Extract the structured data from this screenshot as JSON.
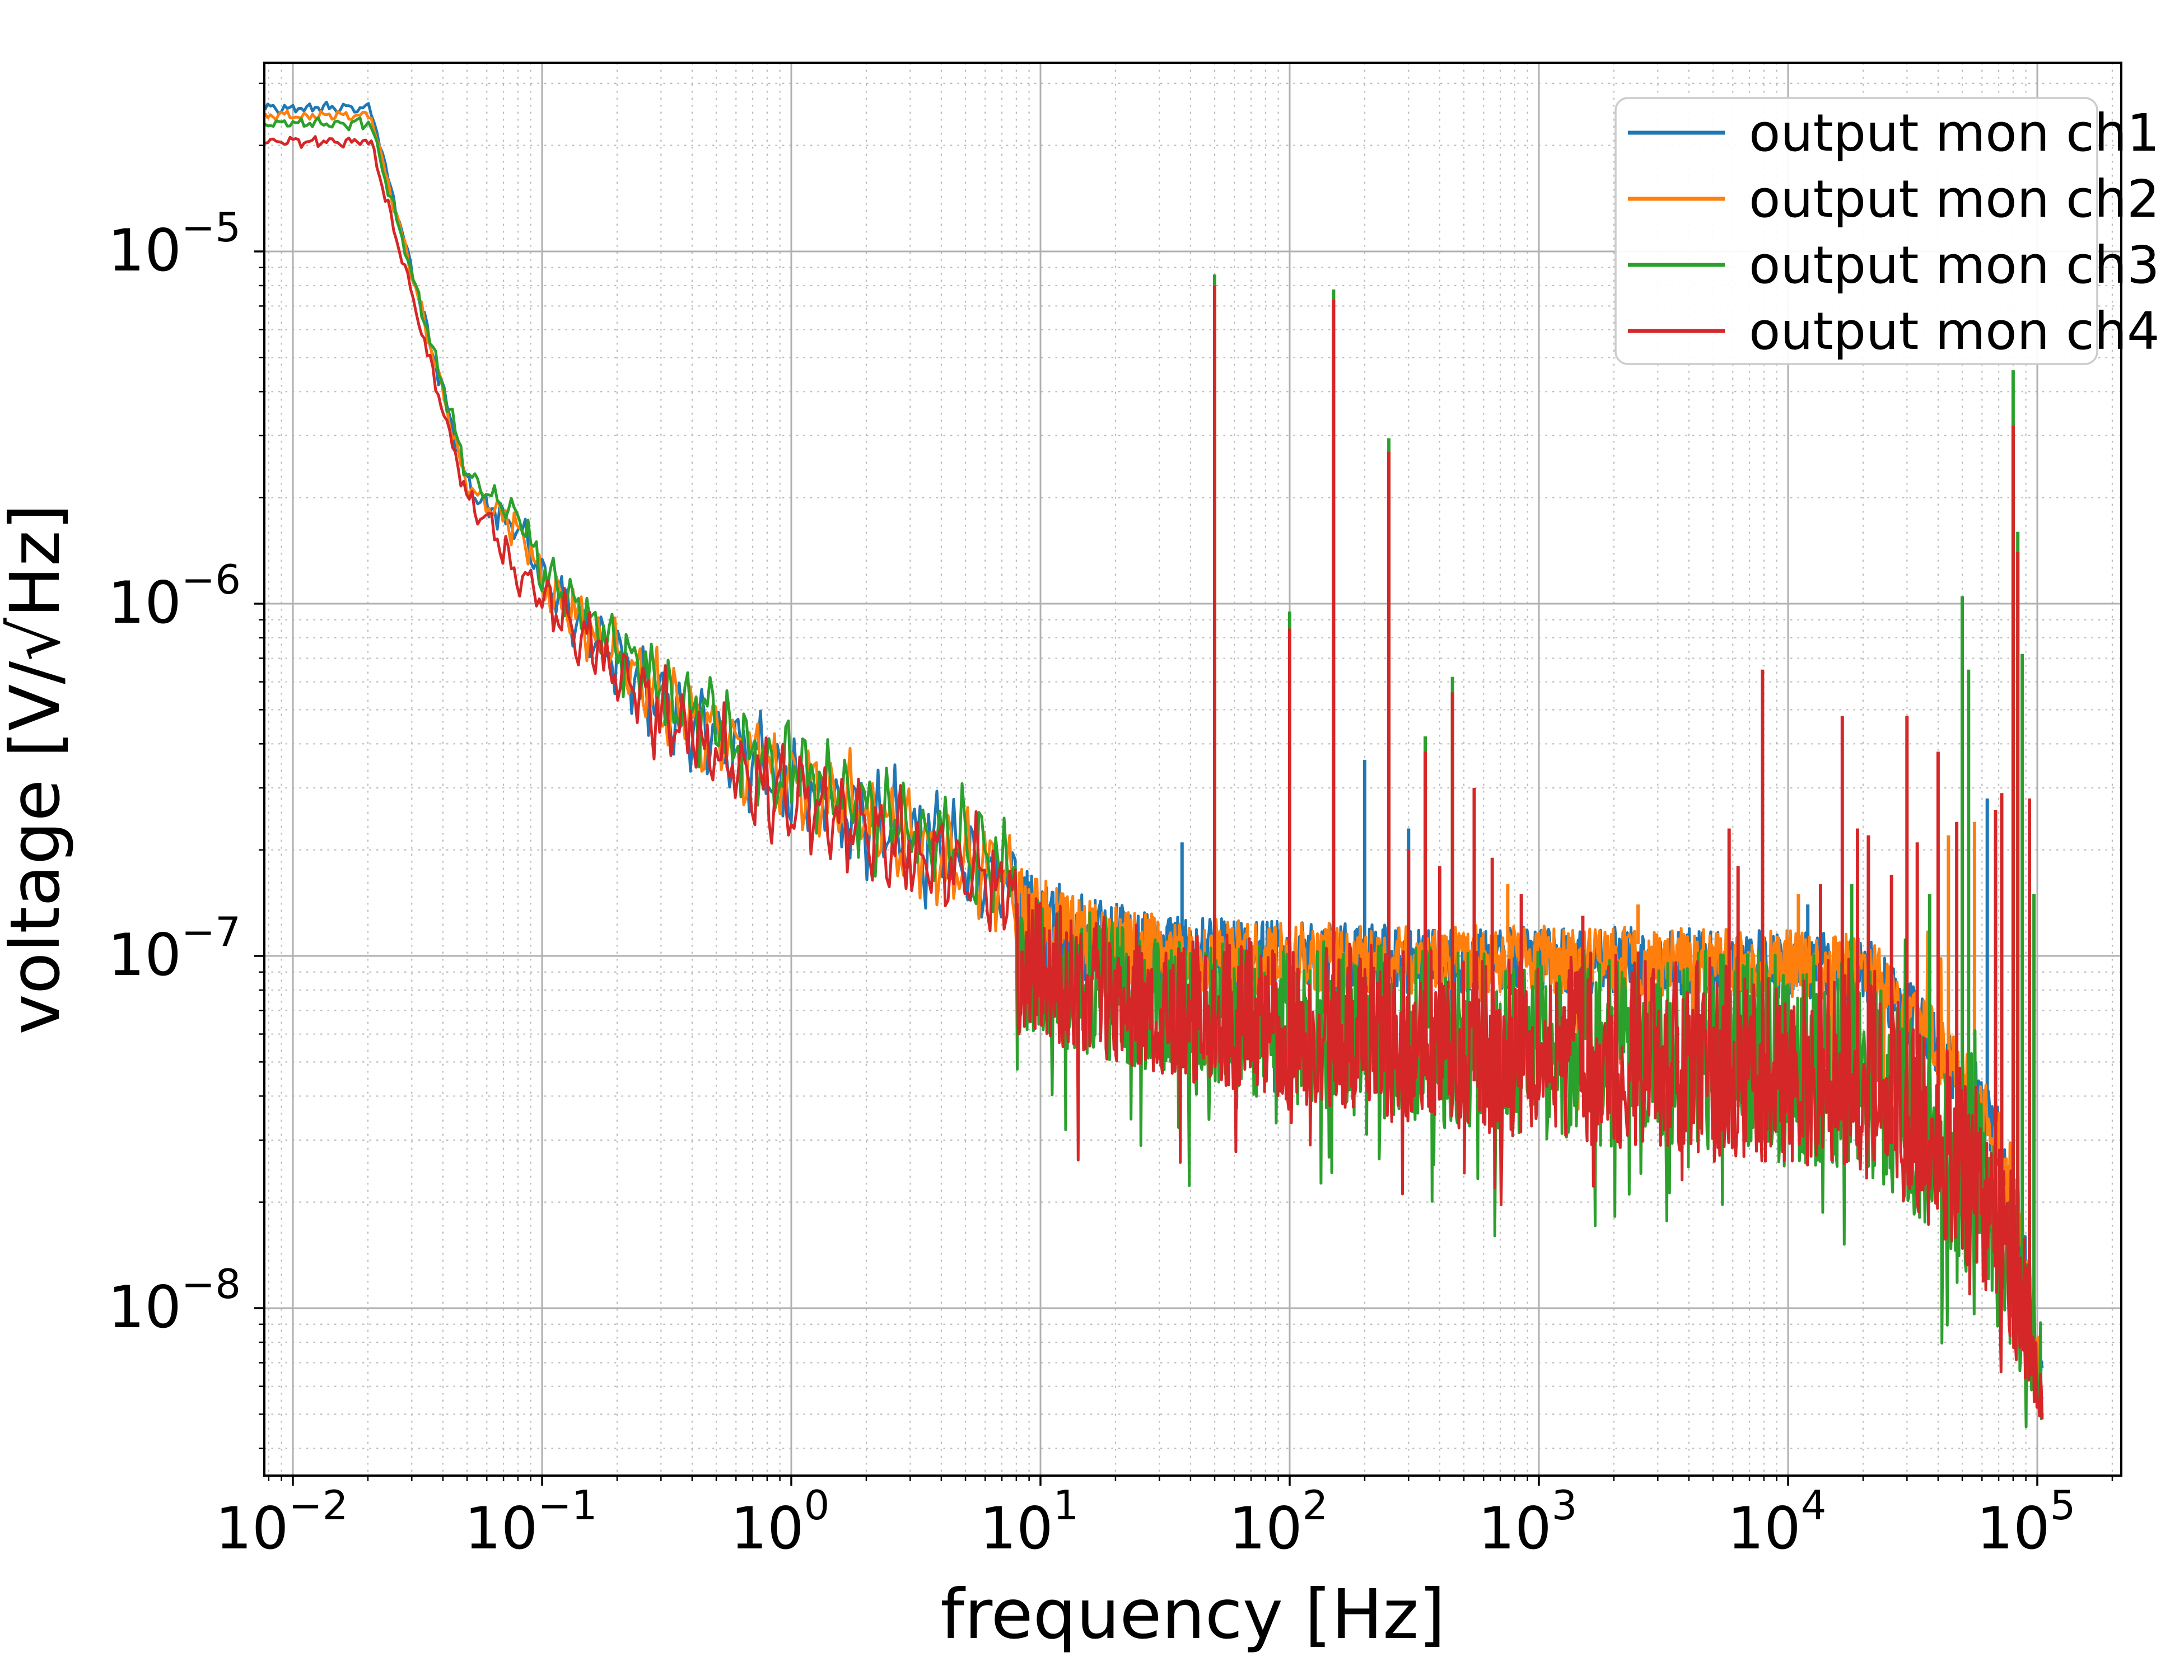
{
  "chart_data": {
    "type": "line",
    "title": "",
    "xlabel": "frequency [Hz]",
    "ylabel": "voltage [V/√Hz]",
    "ylabel_parts": {
      "prefix": "voltage [V/",
      "radical": "√",
      "under_root": "Hz",
      "suffix": "]"
    },
    "xscale": "log",
    "yscale": "log",
    "xlim": [
      0.0077,
      220000
    ],
    "ylim": [
      3.4e-09,
      3.44e-05
    ],
    "grid": {
      "major": true,
      "minor": true
    },
    "x_tick_exponents": [
      -2,
      -1,
      0,
      1,
      2,
      3,
      4,
      5
    ],
    "y_tick_exponents": [
      -5,
      -6,
      -7,
      -8
    ],
    "legend": {
      "position": "upper right",
      "entries": [
        "output mon ch1",
        "output mon ch2",
        "output mon ch3",
        "output mon ch4"
      ]
    },
    "colors": {
      "ch1": "#1f77b4",
      "ch2": "#ff7f0e",
      "ch3": "#2ca02c",
      "ch4": "#d62728"
    },
    "low_freq_backbone": [
      [
        0.05,
        2.15e-06
      ],
      [
        0.06,
        1.9e-06
      ],
      [
        0.07,
        1.75e-06
      ],
      [
        0.085,
        1.55e-06
      ],
      [
        0.1,
        1.15e-06
      ],
      [
        0.12,
        1e-06
      ],
      [
        0.15,
        8.6e-07
      ],
      [
        0.2,
        7e-07
      ],
      [
        0.25,
        6e-07
      ],
      [
        0.3,
        5.2e-07
      ],
      [
        0.4,
        4.6e-07
      ],
      [
        0.5,
        4.2e-07
      ],
      [
        0.7,
        3.6e-07
      ],
      [
        1,
        3.05e-07
      ],
      [
        1.5,
        2.7e-07
      ],
      [
        2,
        2.45e-07
      ],
      [
        3,
        2.1e-07
      ],
      [
        5,
        1.85e-07
      ],
      [
        8,
        1.55e-07
      ]
    ],
    "plateau_end_hz": 0.0205,
    "band_envelopes": {
      "ch12_top": [
        [
          8,
          1.8e-07
        ],
        [
          15,
          1.5e-07
        ],
        [
          30,
          1.3e-07
        ],
        [
          100,
          1.25e-07
        ],
        [
          300,
          1.22e-07
        ],
        [
          1000,
          1.22e-07
        ],
        [
          5000,
          1.2e-07
        ],
        [
          15000,
          1.18e-07
        ],
        [
          22000,
          1.1e-07
        ],
        [
          28000,
          9e-08
        ],
        [
          40000,
          7e-08
        ],
        [
          55000,
          5.2e-08
        ],
        [
          70000,
          3.8e-08
        ],
        [
          82000,
          2.6e-08
        ],
        [
          92000,
          1.6e-08
        ],
        [
          100000,
          9e-09
        ],
        [
          105000,
          7e-09
        ]
      ],
      "ch12_bottom": [
        [
          8,
          9e-08
        ],
        [
          15,
          8.2e-08
        ],
        [
          30,
          7.8e-08
        ],
        [
          100,
          7.8e-08
        ],
        [
          1000,
          7.8e-08
        ],
        [
          10000,
          7.6e-08
        ],
        [
          22000,
          7e-08
        ],
        [
          28000,
          5.8e-08
        ],
        [
          40000,
          4.4e-08
        ],
        [
          55000,
          3.3e-08
        ],
        [
          70000,
          2.4e-08
        ],
        [
          82000,
          1.6e-08
        ],
        [
          92000,
          1e-08
        ],
        [
          100000,
          6e-09
        ],
        [
          105000,
          5e-09
        ]
      ],
      "ch34_top": [
        [
          8,
          1.55e-07
        ],
        [
          15,
          1.35e-07
        ],
        [
          30,
          1.18e-07
        ],
        [
          100,
          1.12e-07
        ],
        [
          300,
          1.08e-07
        ],
        [
          1000,
          1.06e-07
        ],
        [
          5000,
          1.04e-07
        ],
        [
          15000,
          1.02e-07
        ],
        [
          22000,
          9.6e-08
        ],
        [
          28000,
          8e-08
        ],
        [
          40000,
          6.2e-08
        ],
        [
          55000,
          4.6e-08
        ],
        [
          70000,
          3.4e-08
        ],
        [
          82000,
          2.3e-08
        ],
        [
          92000,
          1.4e-08
        ],
        [
          100000,
          8e-09
        ],
        [
          105000,
          6e-09
        ]
      ],
      "ch34_bottom": [
        [
          8,
          6e-08
        ],
        [
          15,
          5.2e-08
        ],
        [
          30,
          4.6e-08
        ],
        [
          100,
          3.8e-08
        ],
        [
          300,
          3.3e-08
        ],
        [
          1000,
          3e-08
        ],
        [
          5000,
          2.7e-08
        ],
        [
          15000,
          2.5e-08
        ],
        [
          22000,
          2.3e-08
        ],
        [
          28000,
          2e-08
        ],
        [
          40000,
          1.6e-08
        ],
        [
          55000,
          1.2e-08
        ],
        [
          70000,
          9e-09
        ],
        [
          82000,
          7e-09
        ],
        [
          92000,
          5.8e-09
        ],
        [
          100000,
          5e-09
        ],
        [
          105000,
          4.5e-09
        ]
      ]
    },
    "series": [
      {
        "name": "output mon ch1",
        "color": "#1f77b4",
        "plateau": 2.55e-05,
        "low_mult": 1.0,
        "env": "ch12",
        "bias": 1.0,
        "dip_p": 0.01,
        "poke_p": 0.0,
        "spikes": [
          [
            37,
            2.1e-07
          ],
          [
            200,
            3.6e-07
          ],
          [
            300,
            2.3e-07
          ],
          [
            550,
            2e-07
          ],
          [
            12000,
            1.4e-07
          ],
          [
            63000,
            2.8e-07
          ]
        ]
      },
      {
        "name": "output mon ch2",
        "color": "#ff7f0e",
        "plateau": 2.43e-05,
        "low_mult": 1.0,
        "env": "ch12",
        "bias": 1.0,
        "dip_p": 0.015,
        "poke_p": 0.02,
        "spikes": [
          [
            750,
            1.6e-07
          ],
          [
            2500,
            1.4e-07
          ],
          [
            11000,
            1.5e-07
          ],
          [
            44000,
            2.2e-07
          ],
          [
            56000,
            2.4e-07
          ]
        ]
      },
      {
        "name": "output mon ch3",
        "color": "#2ca02c",
        "plateau": 2.3e-05,
        "low_mult": 1.08,
        "env": "ch34",
        "bias": 0.85,
        "dip_p": 0.07,
        "poke_p": 0.05,
        "spikes": [
          [
            50,
            8.6e-06
          ],
          [
            100,
            9.5e-07
          ],
          [
            150,
            7.8e-06
          ],
          [
            250,
            2.95e-06
          ],
          [
            350,
            4.2e-07
          ],
          [
            450,
            6.2e-07
          ],
          [
            18000,
            1.6e-07
          ],
          [
            37000,
            1.5e-07
          ],
          [
            50000,
            1.05e-06
          ],
          [
            53000,
            6.5e-07
          ],
          [
            80000,
            4.6e-06
          ],
          [
            83500,
            1.6e-06
          ],
          [
            87000,
            7.2e-07
          ],
          [
            97000,
            1.5e-07
          ]
        ]
      },
      {
        "name": "output mon ch4",
        "color": "#d62728",
        "plateau": 2.05e-05,
        "low_mult": 0.92,
        "env": "ch34",
        "bias": 0.8,
        "dip_p": 0.04,
        "poke_p": 0.0,
        "spikes": [
          [
            50,
            8e-06
          ],
          [
            100,
            8.5e-07
          ],
          [
            150,
            7.3e-06
          ],
          [
            250,
            2.7e-06
          ],
          [
            300,
            2e-07
          ],
          [
            350,
            3.8e-07
          ],
          [
            400,
            1.8e-07
          ],
          [
            450,
            5.6e-07
          ],
          [
            550,
            3e-07
          ],
          [
            650,
            1.9e-07
          ],
          [
            850,
            1.5e-07
          ],
          [
            1500,
            1.3e-07
          ],
          [
            5800,
            2.3e-07
          ],
          [
            6300,
            1.8e-07
          ],
          [
            7900,
            6.5e-07
          ],
          [
            13500,
            1.6e-07
          ],
          [
            16500,
            4.8e-07
          ],
          [
            19000,
            2.3e-07
          ],
          [
            21000,
            2.2e-07
          ],
          [
            26000,
            1.7e-07
          ],
          [
            30000,
            4.8e-07
          ],
          [
            33000,
            2.1e-07
          ],
          [
            40000,
            3.8e-07
          ],
          [
            47500,
            2.4e-07
          ],
          [
            68000,
            2.6e-07
          ],
          [
            72000,
            2.9e-07
          ],
          [
            80000,
            3.2e-06
          ],
          [
            83500,
            1.4e-06
          ],
          [
            93000,
            2.8e-07
          ]
        ]
      }
    ],
    "style": {
      "grid_major_color": "#b0b0b0",
      "grid_minor_color": "#bbbbbb",
      "spine_color": "#000000",
      "legend_edge_color": "#cccccc",
      "background": "#ffffff"
    }
  }
}
